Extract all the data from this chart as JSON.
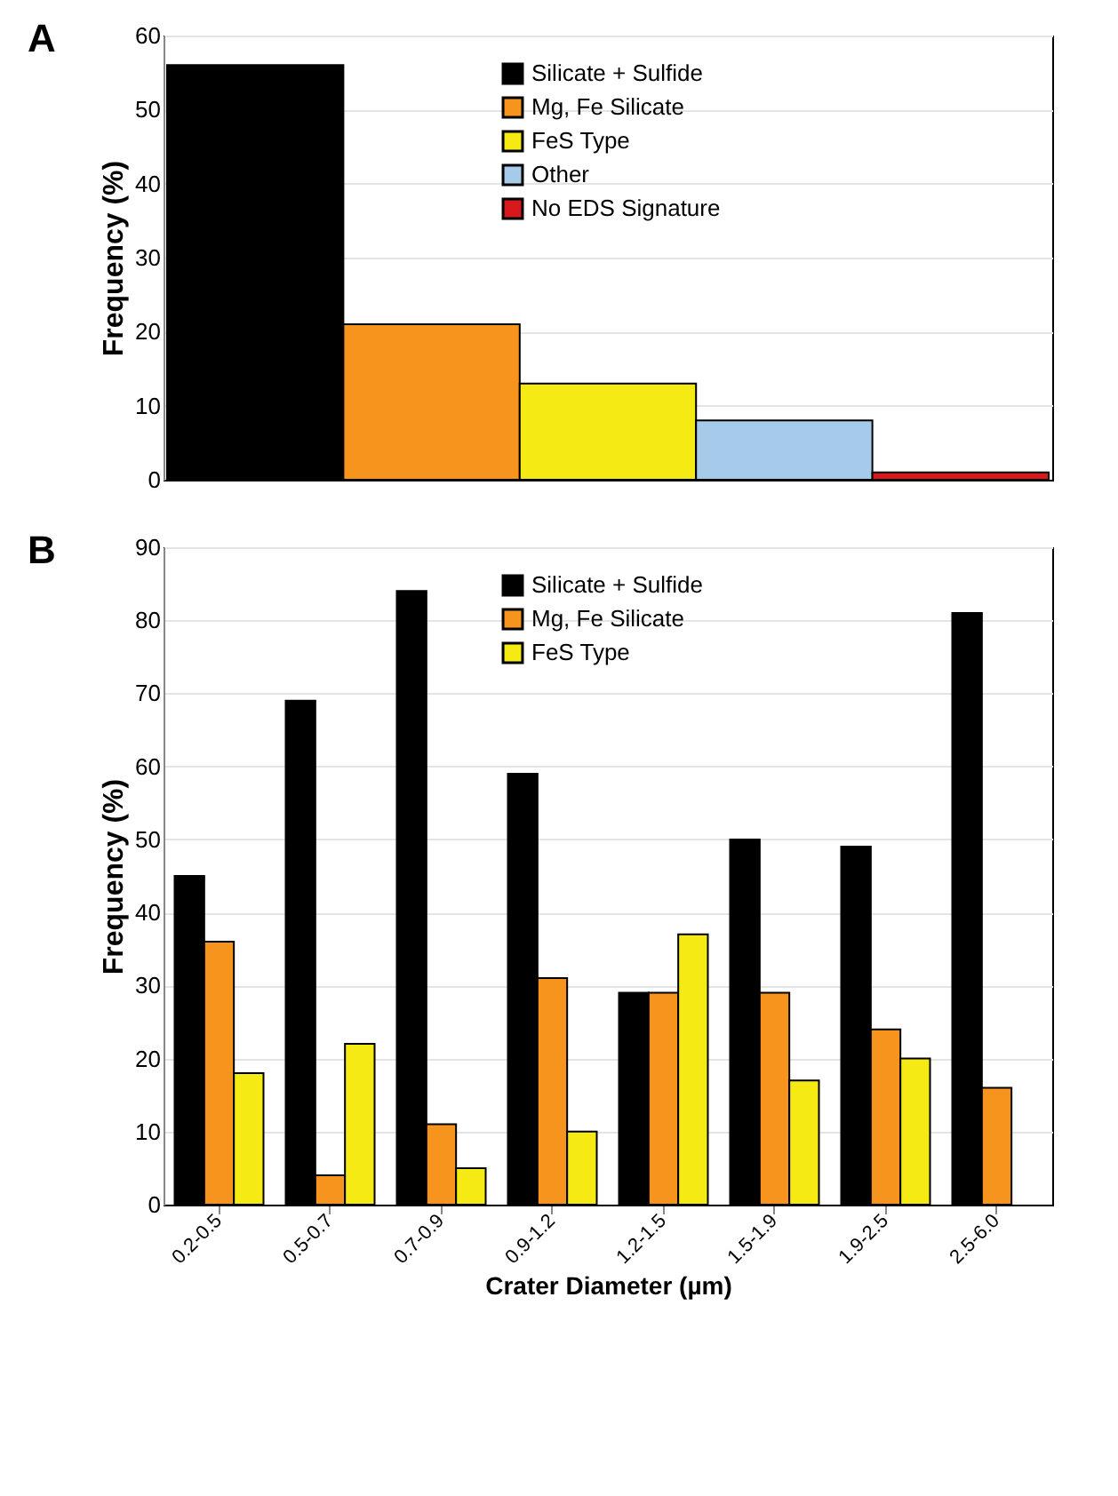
{
  "chart_data": [
    {
      "type": "bar",
      "title": "A",
      "ylabel": "Frequency (%)",
      "categories": [
        null,
        null,
        null,
        null,
        null
      ],
      "series": [
        {
          "name": "Silicate + Sulfide",
          "color": "#000000",
          "values": [
            56,
            null,
            null,
            null,
            null
          ]
        },
        {
          "name": "Mg, Fe Silicate",
          "color": "#f7941d",
          "values": [
            null,
            21,
            null,
            null,
            null
          ]
        },
        {
          "name": "FeS Type",
          "color": "#f5ea14",
          "values": [
            null,
            null,
            13,
            null,
            null
          ]
        },
        {
          "name": "Other",
          "color": "#a6cbea",
          "values": [
            null,
            null,
            null,
            8,
            null
          ]
        },
        {
          "name": "No EDS Signature",
          "color": "#d7191c",
          "values": [
            null,
            null,
            null,
            null,
            1
          ]
        }
      ],
      "ylim": [
        0,
        60
      ],
      "yticks": [
        0,
        10,
        20,
        30,
        40,
        50,
        60
      ],
      "grid": "y",
      "legend": "top right",
      "tick_labels": "y"
    },
    {
      "type": "bar",
      "title": "B",
      "xlabel": "Crater Diameter (µm)",
      "ylabel": "Frequency (%)",
      "categories": [
        "0.2-0.5",
        "0.5-0.7",
        "0.7-0.9",
        "0.9-1.2",
        "1.2-1.5",
        "1.5-1.9",
        "1.9-2.5",
        "2.5-6.0"
      ],
      "series": [
        {
          "name": "Silicate + Sulfide",
          "color": "#000000",
          "values": [
            45,
            69,
            84,
            59,
            29,
            50,
            49,
            81
          ]
        },
        {
          "name": "Mg, Fe Silicate",
          "color": "#f7941d",
          "values": [
            36,
            4,
            11,
            31,
            29,
            29,
            24,
            16
          ]
        },
        {
          "name": "FeS Type",
          "color": "#f5ea14",
          "values": [
            18,
            22,
            5,
            10,
            37,
            17,
            20,
            null
          ]
        }
      ],
      "ylim": [
        0,
        90
      ],
      "yticks": [
        0,
        10,
        20,
        30,
        40,
        50,
        60,
        70,
        80,
        90
      ],
      "grid": "y",
      "legend": "top right"
    }
  ]
}
